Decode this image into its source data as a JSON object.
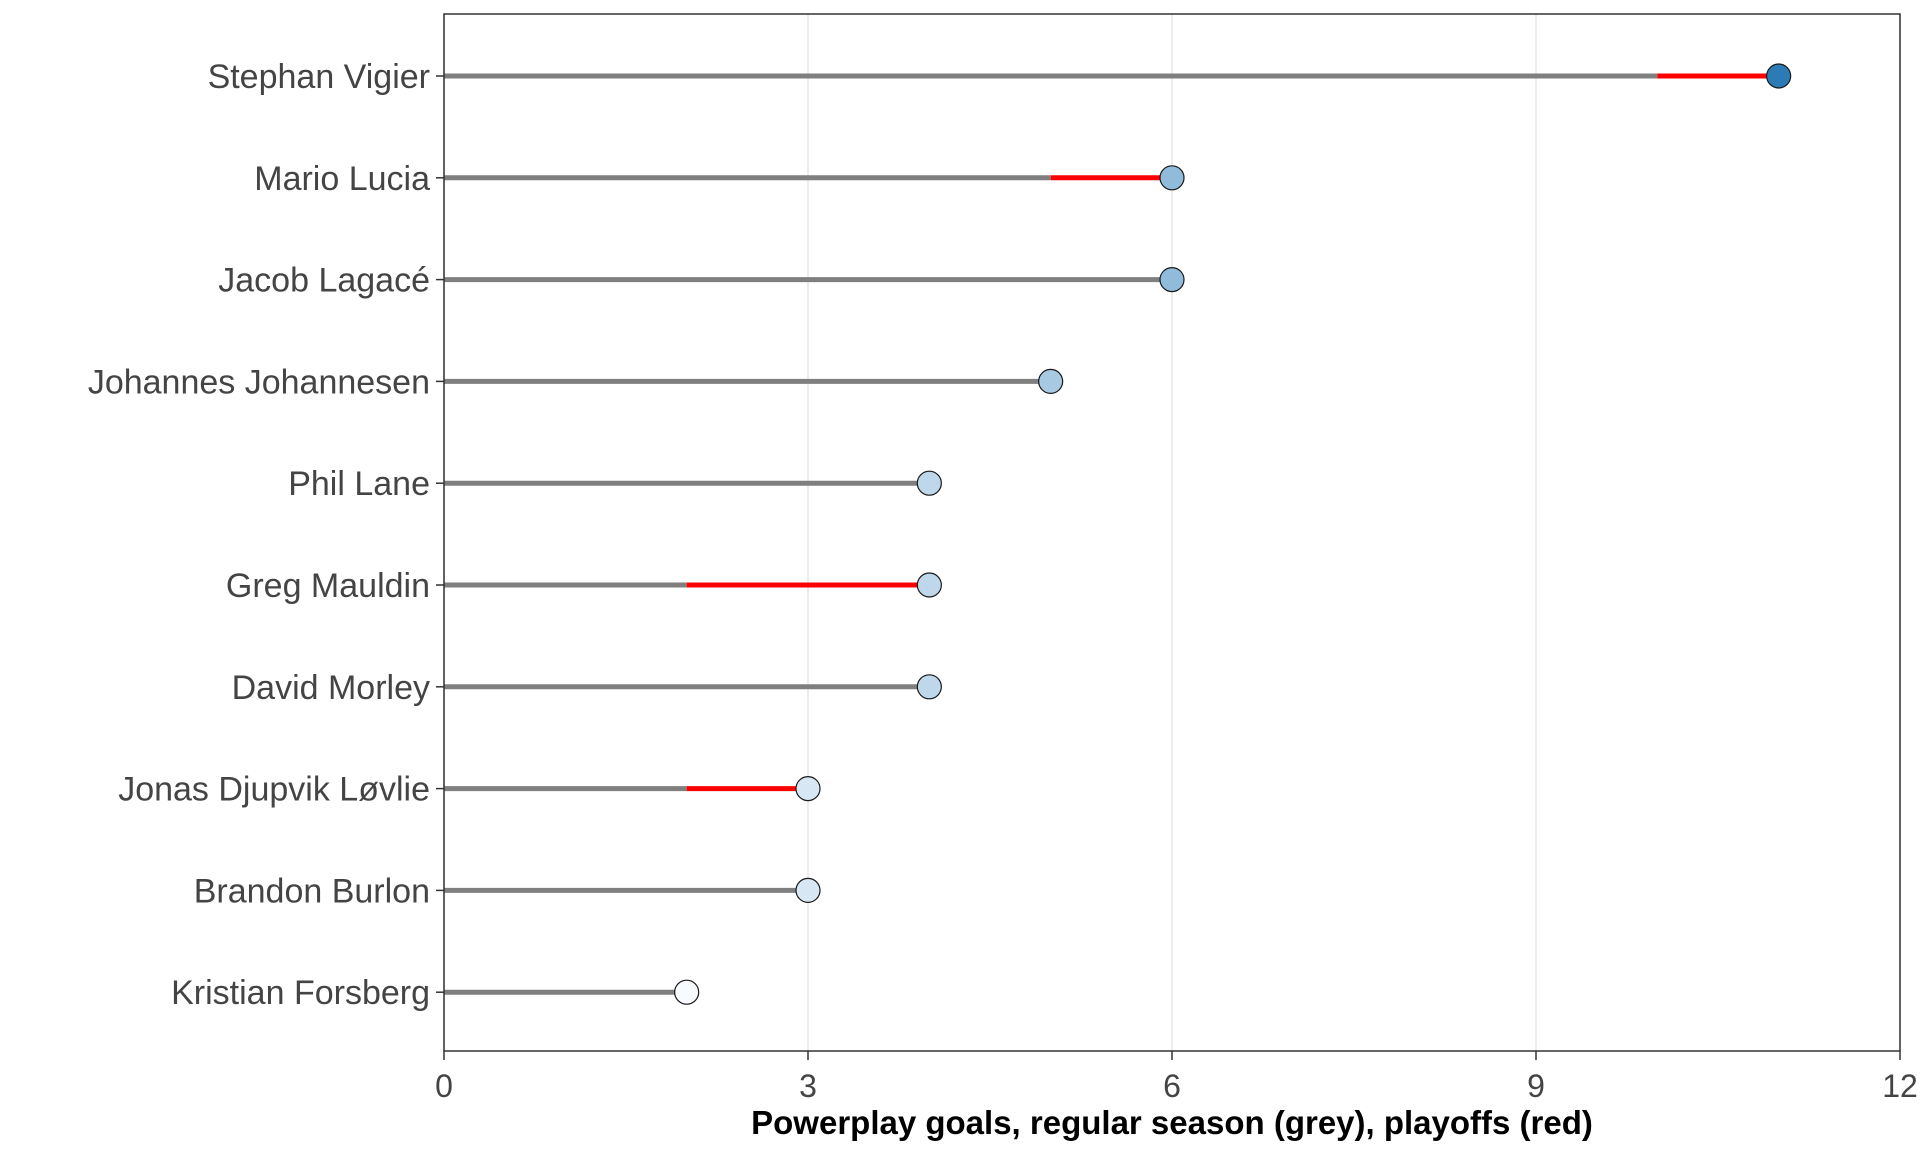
{
  "chart_data": {
    "type": "lollipop",
    "xlabel": "Powerplay goals, regular season (grey), playoffs (red)",
    "ylabel": "",
    "xlim": [
      0,
      12
    ],
    "x_ticks": [
      0,
      3,
      6,
      9,
      12
    ],
    "grid": "vertical major",
    "players": [
      {
        "name": "Stephan Vigier",
        "regular_season": 10,
        "playoffs": 1,
        "total": 11
      },
      {
        "name": "Mario Lucia",
        "regular_season": 5,
        "playoffs": 1,
        "total": 6
      },
      {
        "name": "Jacob Lagacé",
        "regular_season": 6,
        "playoffs": 0,
        "total": 6
      },
      {
        "name": "Johannes Johannesen",
        "regular_season": 5,
        "playoffs": 0,
        "total": 5
      },
      {
        "name": "Phil Lane",
        "regular_season": 4,
        "playoffs": 0,
        "total": 4
      },
      {
        "name": "Greg Mauldin",
        "regular_season": 2,
        "playoffs": 2,
        "total": 4
      },
      {
        "name": "David Morley",
        "regular_season": 4,
        "playoffs": 0,
        "total": 4
      },
      {
        "name": "Jonas Djupvik Løvlie",
        "regular_season": 2,
        "playoffs": 1,
        "total": 3
      },
      {
        "name": "Brandon Burlon",
        "regular_season": 3,
        "playoffs": 0,
        "total": 3
      },
      {
        "name": "Kristian Forsberg",
        "regular_season": 2,
        "playoffs": 0,
        "total": 2
      }
    ],
    "colors": {
      "regular_season": "#7f7f7f",
      "playoffs": "#ff0000",
      "grid": "#e5e5e5",
      "panel_border": "#333333",
      "point_scale_low": "#f7fbff",
      "point_scale_high": "#2c7bb6",
      "point_outline": "#1a1a1a"
    }
  }
}
